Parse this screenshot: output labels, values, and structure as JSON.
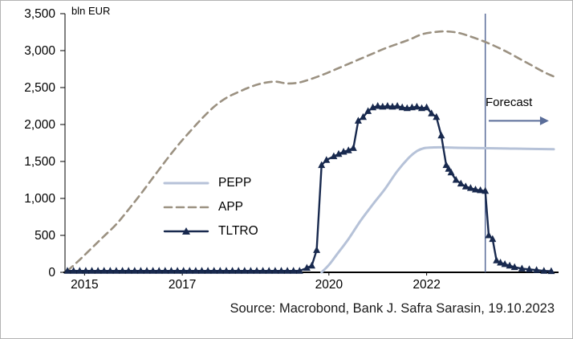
{
  "figure": {
    "unit_label": "bln EUR",
    "source_note": "Source: Macrobond, Bank J. Safra Sarasin, 19.10.2023"
  },
  "chart_data": {
    "type": "line",
    "ylabel": "bln EUR",
    "ylim": [
      0,
      3500
    ],
    "yticks": [
      0,
      500,
      1000,
      1500,
      2000,
      2500,
      3000,
      3500
    ],
    "xlim": [
      2014.95,
      2025.0
    ],
    "xticks": [
      2015,
      2017,
      2020,
      2022
    ],
    "grid": false,
    "legend": [
      "PEPP",
      "APP",
      "TLTRO"
    ],
    "legend_position": "center-left",
    "axis_color": "#000000",
    "forecast_color": "#5a6d99",
    "annotations": {
      "forecast_label": "Forecast",
      "forecast_line_x": 2023.55,
      "forecast_arrow": {
        "x1": 2023.62,
        "x2": 2024.85,
        "y": 2050
      }
    },
    "series": [
      {
        "name": "PEPP",
        "color": "#b6c2d8",
        "style": "solid",
        "smooth": true,
        "width": 3,
        "marker": "none",
        "x": [
          2020.2,
          2020.35,
          2020.5,
          2020.75,
          2021.0,
          2021.25,
          2021.5,
          2021.75,
          2022.0,
          2022.15,
          2022.3,
          2022.5,
          2022.75,
          2023.0,
          2023.5,
          2024.0,
          2024.5,
          2024.95
        ],
        "y": [
          0,
          100,
          230,
          450,
          700,
          920,
          1130,
          1370,
          1560,
          1640,
          1680,
          1690,
          1690,
          1685,
          1680,
          1675,
          1670,
          1665
        ]
      },
      {
        "name": "APP",
        "color": "#9b9181",
        "style": "dashed",
        "smooth": true,
        "width": 2.6,
        "marker": "none",
        "x": [
          2015.0,
          2015.25,
          2015.5,
          2015.75,
          2016.0,
          2016.25,
          2016.5,
          2016.75,
          2017.0,
          2017.25,
          2017.5,
          2017.75,
          2018.0,
          2018.25,
          2018.5,
          2018.75,
          2019.0,
          2019.25,
          2019.5,
          2019.75,
          2020.0,
          2020.25,
          2020.5,
          2020.75,
          2021.0,
          2021.25,
          2021.5,
          2021.75,
          2022.0,
          2022.25,
          2022.5,
          2022.75,
          2023.0,
          2023.25,
          2023.5,
          2023.75,
          2024.0,
          2024.25,
          2024.5,
          2024.75,
          2024.95
        ],
        "y": [
          20,
          170,
          330,
          490,
          650,
          850,
          1060,
          1280,
          1500,
          1710,
          1900,
          2080,
          2240,
          2360,
          2440,
          2510,
          2560,
          2580,
          2555,
          2570,
          2620,
          2680,
          2750,
          2820,
          2890,
          2960,
          3030,
          3090,
          3150,
          3220,
          3250,
          3260,
          3240,
          3190,
          3130,
          3060,
          2980,
          2890,
          2800,
          2710,
          2650
        ]
      },
      {
        "name": "TLTRO",
        "color": "#18294e",
        "style": "solid",
        "smooth": false,
        "width": 2.4,
        "marker": "triangle",
        "x": [
          2015.0,
          2015.125,
          2015.25,
          2015.375,
          2015.5,
          2015.625,
          2015.75,
          2015.875,
          2016.0,
          2016.125,
          2016.25,
          2016.375,
          2016.5,
          2016.625,
          2016.75,
          2016.875,
          2017.0,
          2017.125,
          2017.25,
          2017.375,
          2017.5,
          2017.625,
          2017.75,
          2017.875,
          2018.0,
          2018.125,
          2018.25,
          2018.375,
          2018.5,
          2018.625,
          2018.75,
          2018.875,
          2019.0,
          2019.125,
          2019.25,
          2019.375,
          2019.5,
          2019.625,
          2019.75,
          2019.9,
          2020.0,
          2020.1,
          2020.2,
          2020.3,
          2020.45,
          2020.55,
          2020.65,
          2020.75,
          2020.85,
          2020.95,
          2021.05,
          2021.15,
          2021.25,
          2021.35,
          2021.45,
          2021.55,
          2021.65,
          2021.75,
          2021.85,
          2021.95,
          2022.05,
          2022.15,
          2022.25,
          2022.35,
          2022.45,
          2022.55,
          2022.65,
          2022.75,
          2022.8,
          2022.85,
          2022.95,
          2023.05,
          2023.15,
          2023.25,
          2023.35,
          2023.45,
          2023.55,
          2023.62,
          2023.7,
          2023.78,
          2023.86,
          2023.95,
          2024.05,
          2024.15,
          2024.3,
          2024.45,
          2024.6,
          2024.75,
          2024.9
        ],
        "y": [
          20,
          20,
          20,
          20,
          20,
          20,
          20,
          20,
          20,
          20,
          20,
          20,
          20,
          20,
          20,
          20,
          20,
          20,
          20,
          20,
          20,
          20,
          20,
          20,
          20,
          20,
          20,
          20,
          20,
          20,
          20,
          20,
          20,
          20,
          20,
          20,
          20,
          20,
          20,
          60,
          90,
          300,
          1450,
          1520,
          1570,
          1600,
          1630,
          1650,
          1680,
          2050,
          2100,
          2180,
          2230,
          2250,
          2240,
          2250,
          2240,
          2250,
          2230,
          2220,
          2230,
          2240,
          2220,
          2230,
          2150,
          2100,
          1850,
          1450,
          1400,
          1350,
          1250,
          1200,
          1160,
          1140,
          1120,
          1110,
          1100,
          500,
          450,
          160,
          130,
          110,
          90,
          70,
          50,
          40,
          30,
          20,
          15
        ]
      }
    ]
  }
}
